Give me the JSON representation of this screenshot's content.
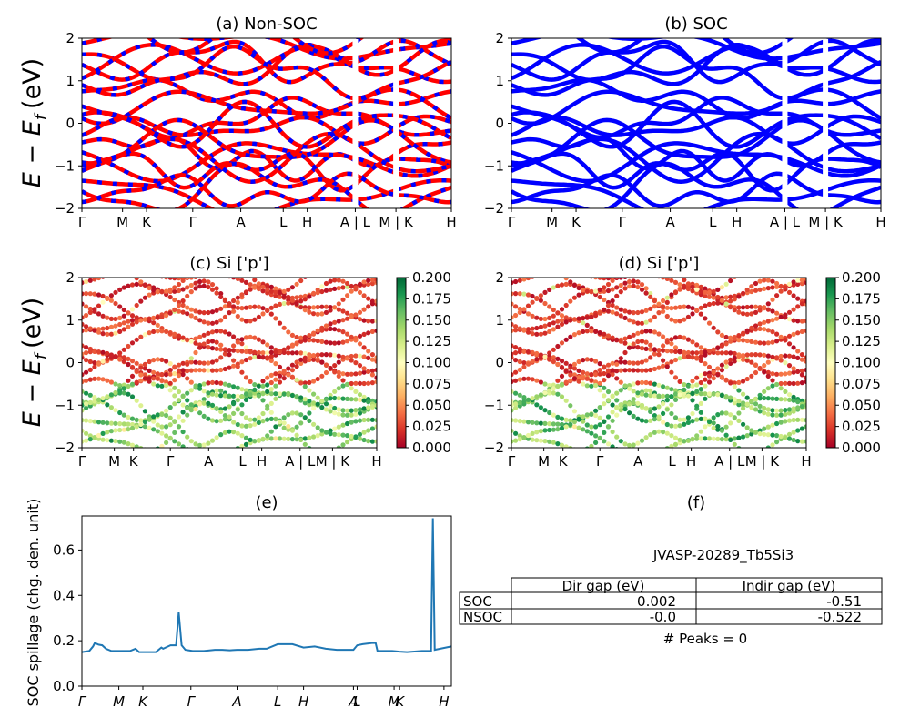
{
  "figure": {
    "ylabel_bands": "E − E_f (eV)",
    "ylabel_bands_main": "E − E",
    "ylabel_bands_sub": "f",
    "ylabel_bands_unit": "(eV)"
  },
  "colors": {
    "nonsoc_red": "#ff0000",
    "nonsoc_blue": "#0000ff",
    "soc_blue": "#0000ff",
    "spillage_line": "#1f77b4",
    "colormap": "RdYlGn"
  },
  "chart_data": [
    {
      "panel": "a",
      "type": "line",
      "title": "(a) Non-SOC",
      "ylim": [
        -2,
        2
      ],
      "yticks": [
        "2",
        "1",
        "0",
        "−1",
        "−2"
      ],
      "xticks": [
        "Γ",
        "M",
        "K",
        "Γ",
        "A",
        "L",
        "H",
        "A | L",
        "M | K",
        "H"
      ],
      "xtick_pos": [
        0,
        0.11,
        0.175,
        0.3,
        0.43,
        0.545,
        0.61,
        0.74,
        0.85,
        1.0
      ],
      "breaks": [
        0.74,
        0.85
      ],
      "series_style": "red and blue dashed overlay",
      "bands_note": "band energies at Γ (eV)",
      "band_energies_at_gamma": [
        1.88,
        1.62,
        1.38,
        1.06,
        0.75,
        0.4,
        0.12,
        -0.28,
        -0.45,
        -0.68,
        -0.92,
        -1.12,
        -1.35,
        -1.6,
        -1.85
      ]
    },
    {
      "panel": "b",
      "type": "line",
      "title": "(b) SOC",
      "ylim": [
        -2,
        2
      ],
      "yticks": [
        "2",
        "1",
        "0",
        "−1",
        "−2"
      ],
      "xticks": [
        "Γ",
        "M",
        "K",
        "Γ",
        "A",
        "L",
        "H",
        "A | L",
        "M | K",
        "H"
      ],
      "xtick_pos": [
        0,
        0.11,
        0.175,
        0.3,
        0.43,
        0.545,
        0.61,
        0.74,
        0.85,
        1.0
      ],
      "breaks": [
        0.74,
        0.85
      ],
      "band_energies_at_gamma": [
        1.88,
        1.62,
        1.38,
        1.06,
        0.75,
        0.4,
        0.12,
        -0.28,
        -0.45,
        -0.68,
        -0.92,
        -1.12,
        -1.35,
        -1.6,
        -1.85
      ]
    },
    {
      "panel": "c",
      "type": "scatter",
      "title": "(c)  Si ['p']",
      "ylim": [
        -2,
        2
      ],
      "yticks": [
        "2",
        "1",
        "0",
        "−1",
        "−2"
      ],
      "xticks": [
        "Γ",
        "M",
        "K",
        "Γ",
        "A",
        "L",
        "H",
        "A | L",
        "M | K",
        "H"
      ],
      "xtick_pos": [
        0,
        0.11,
        0.175,
        0.3,
        0.43,
        0.545,
        0.61,
        0.74,
        0.85,
        1.0
      ],
      "colorbar": {
        "min": 0.0,
        "max": 0.2,
        "ticks": [
          "0.200",
          "0.175",
          "0.150",
          "0.125",
          "0.100",
          "0.075",
          "0.050",
          "0.025",
          "0.000"
        ]
      },
      "weight_trend": "low (red) above −0.5 eV, high (green) between −2 and −0.5 eV"
    },
    {
      "panel": "d",
      "type": "scatter",
      "title": "(d) Si ['p']",
      "ylim": [
        -2,
        2
      ],
      "yticks": [
        "2",
        "1",
        "0",
        "−1",
        "−2"
      ],
      "xticks": [
        "Γ",
        "M",
        "K",
        "Γ",
        "A",
        "L",
        "H",
        "A | L",
        "M | K",
        "H"
      ],
      "xtick_pos": [
        0,
        0.11,
        0.175,
        0.3,
        0.43,
        0.545,
        0.61,
        0.74,
        0.85,
        1.0
      ],
      "colorbar": {
        "min": 0.0,
        "max": 0.2,
        "ticks": [
          "0.200",
          "0.175",
          "0.150",
          "0.125",
          "0.100",
          "0.075",
          "0.050",
          "0.025",
          "0.000"
        ]
      },
      "weight_trend": "low (red) above −0.5 eV, high (green) between −2 and −0.5 eV"
    },
    {
      "panel": "e",
      "type": "line",
      "title": "(e)",
      "ylabel": "SOC spillage (chg. den. unit)",
      "ylim": [
        0,
        0.75
      ],
      "yticks": [
        "0.0",
        "0.2",
        "0.4",
        "0.6"
      ],
      "ytick_vals": [
        0,
        0.2,
        0.4,
        0.6
      ],
      "xticks": [
        "Γ",
        "M",
        "K",
        "Γ",
        "A",
        "L",
        "H",
        "A",
        "L",
        "M",
        "K",
        "H"
      ],
      "xtick_pos": [
        0,
        0.1,
        0.165,
        0.295,
        0.42,
        0.53,
        0.6,
        0.735,
        0.745,
        0.845,
        0.86,
        0.98
      ],
      "x": [
        0,
        0.02,
        0.03,
        0.035,
        0.045,
        0.055,
        0.065,
        0.08,
        0.1,
        0.13,
        0.145,
        0.155,
        0.16,
        0.175,
        0.2,
        0.215,
        0.22,
        0.24,
        0.255,
        0.262,
        0.27,
        0.28,
        0.3,
        0.33,
        0.36,
        0.38,
        0.4,
        0.42,
        0.45,
        0.48,
        0.5,
        0.53,
        0.545,
        0.57,
        0.6,
        0.63,
        0.66,
        0.69,
        0.72,
        0.735,
        0.745,
        0.76,
        0.785,
        0.795,
        0.8,
        0.84,
        0.86,
        0.88,
        0.92,
        0.945,
        0.95,
        0.955,
        0.97,
        1.0
      ],
      "y": [
        0.15,
        0.155,
        0.175,
        0.19,
        0.183,
        0.18,
        0.165,
        0.155,
        0.155,
        0.155,
        0.165,
        0.15,
        0.15,
        0.15,
        0.15,
        0.17,
        0.165,
        0.18,
        0.18,
        0.325,
        0.18,
        0.16,
        0.155,
        0.155,
        0.16,
        0.16,
        0.158,
        0.16,
        0.16,
        0.165,
        0.165,
        0.185,
        0.185,
        0.185,
        0.17,
        0.175,
        0.165,
        0.16,
        0.16,
        0.16,
        0.18,
        0.185,
        0.19,
        0.19,
        0.155,
        0.155,
        0.152,
        0.15,
        0.155,
        0.155,
        0.74,
        0.16,
        0.165,
        0.175
      ]
    }
  ],
  "panel_f": {
    "title": "(f)",
    "id": "JVASP-20289_Tb5Si3",
    "columns": [
      "",
      "Dir gap (eV)",
      "Indir gap (eV)"
    ],
    "rows": [
      {
        "label": "SOC",
        "dir": "0.002",
        "indir": "-0.51"
      },
      {
        "label": "NSOC",
        "dir": "-0.0",
        "indir": "-0.522"
      }
    ],
    "peaks": "# Peaks = 0"
  }
}
